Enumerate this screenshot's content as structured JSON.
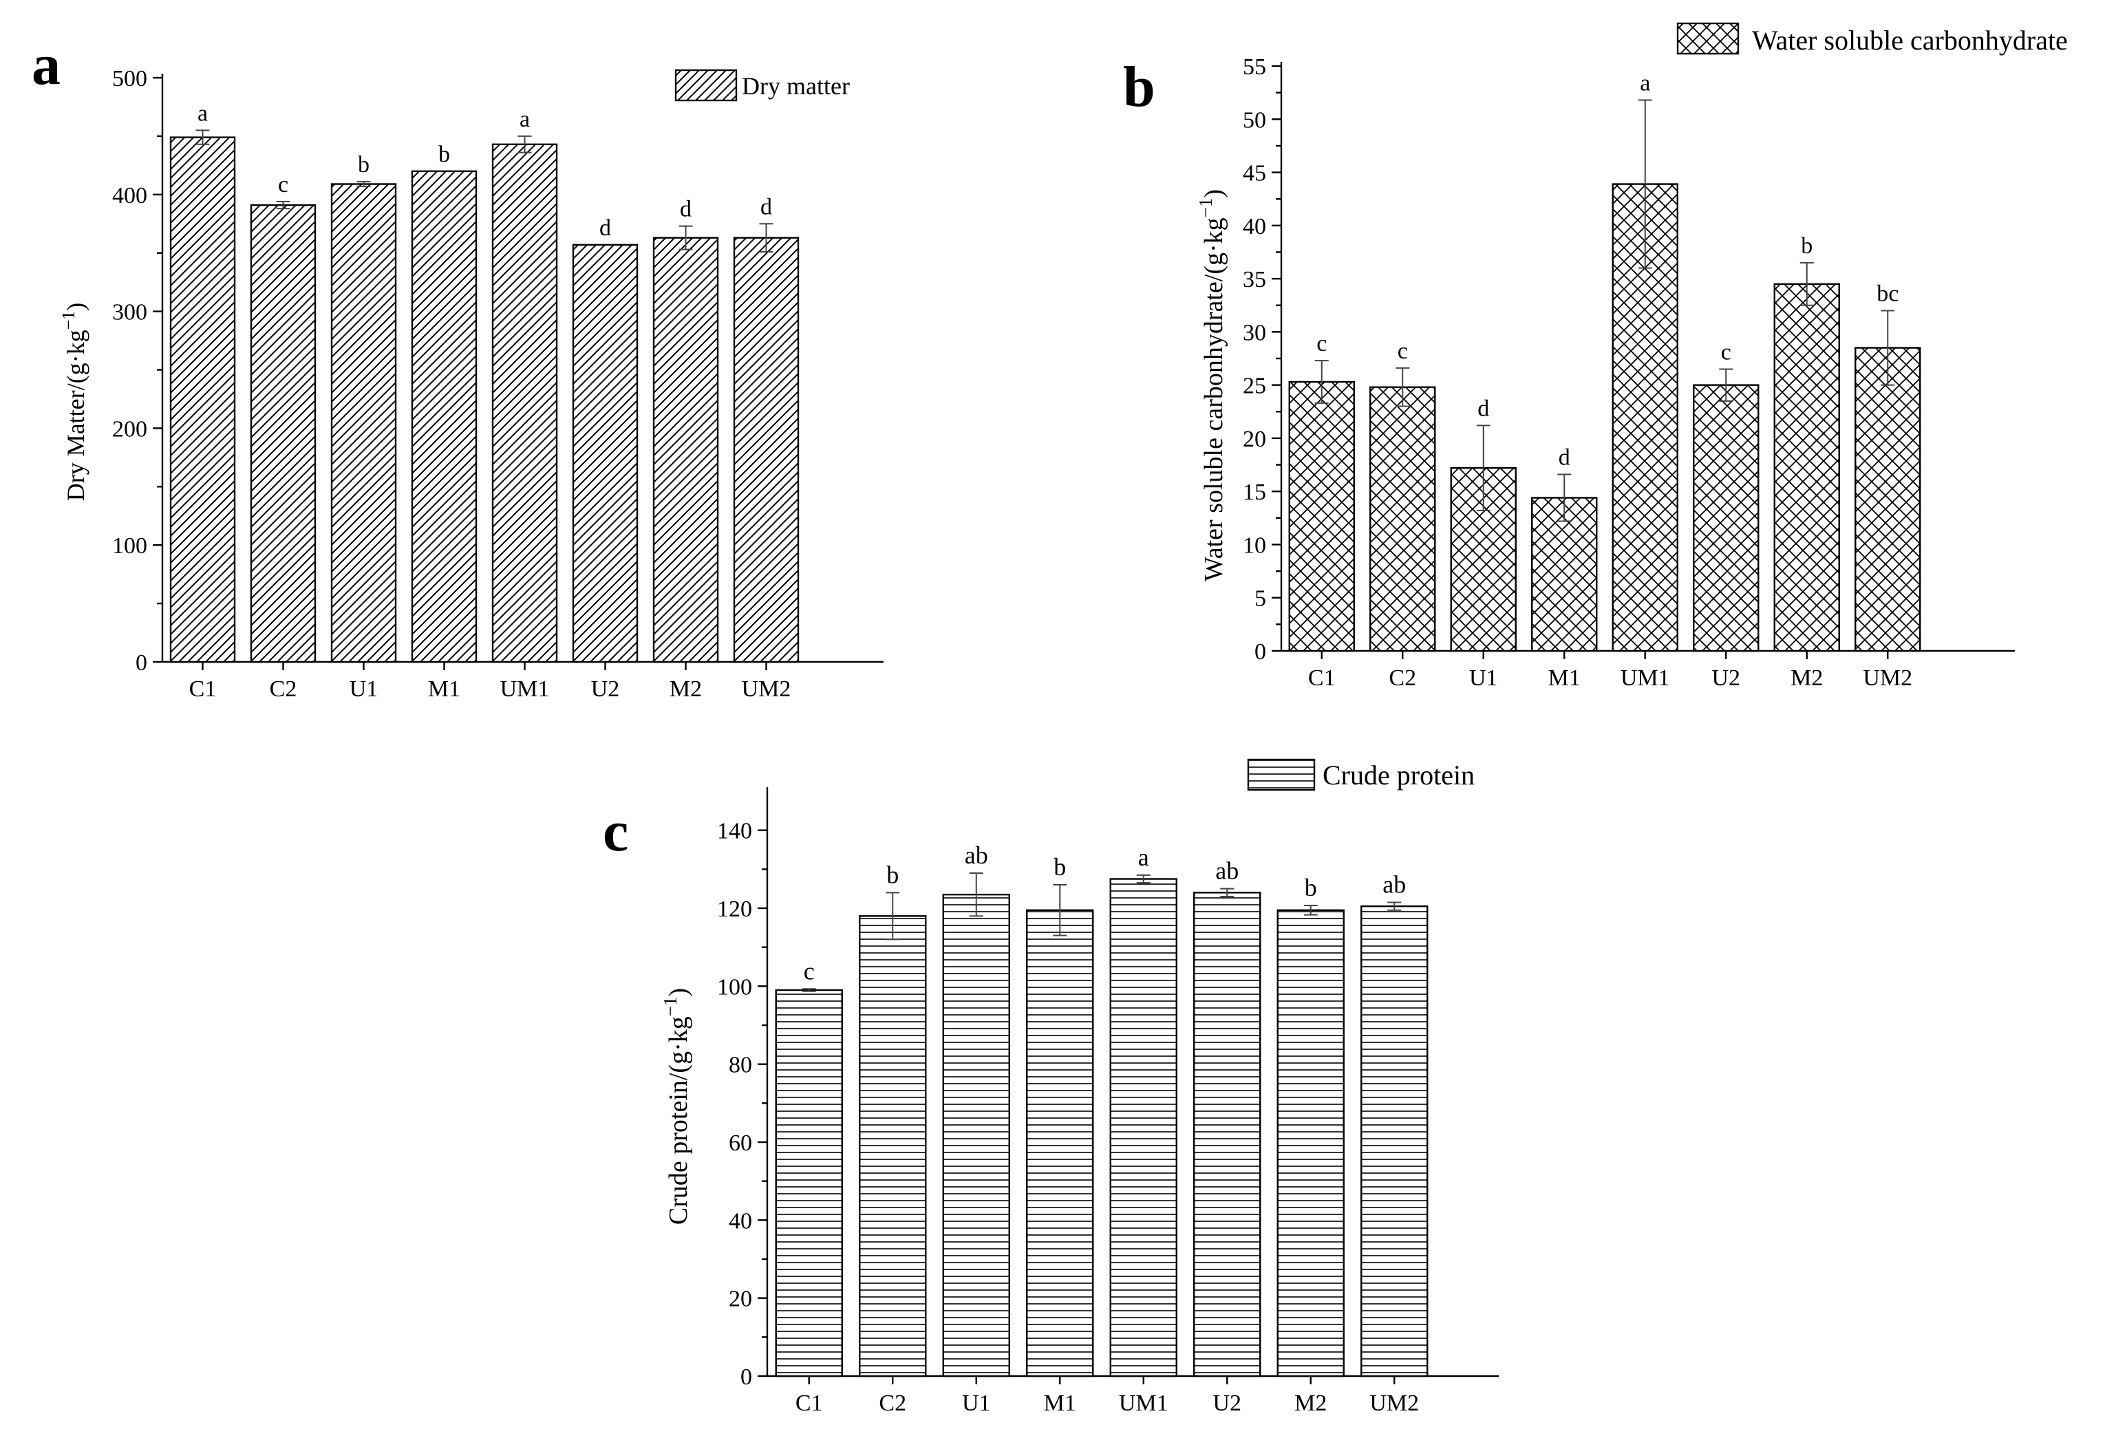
{
  "chart_data": [
    {
      "panel": "a",
      "type": "bar",
      "legend": "Dry matter",
      "ylabel": "Dry Matter/(g·kg",
      "ylabel_sup": "−1",
      "ylabel_close": ")",
      "ylim": [
        0,
        500
      ],
      "yticks": [
        0,
        100,
        200,
        300,
        400,
        500
      ],
      "categories": [
        "C1",
        "C2",
        "U1",
        "M1",
        "UM1",
        "U2",
        "M2",
        "UM2"
      ],
      "values": [
        449,
        391,
        409,
        420,
        443,
        357,
        363,
        363
      ],
      "errors": [
        6,
        3,
        2,
        0,
        7,
        0,
        10,
        12
      ],
      "significance": [
        "a",
        "c",
        "b",
        "b",
        "a",
        "d",
        "d",
        "d"
      ],
      "pattern": "diagonal"
    },
    {
      "panel": "b",
      "type": "bar",
      "legend": "Water soluble carbonhydrate",
      "ylabel": "Water soluble carbonhydrate/(g·kg",
      "ylabel_sup": "−1",
      "ylabel_close": ")",
      "ylim": [
        0,
        55
      ],
      "yticks": [
        0,
        5,
        10,
        15,
        20,
        25,
        30,
        35,
        40,
        45,
        50,
        55
      ],
      "categories": [
        "C1",
        "C2",
        "U1",
        "M1",
        "UM1",
        "U2",
        "M2",
        "UM2"
      ],
      "values": [
        25.3,
        24.8,
        17.2,
        14.4,
        43.9,
        25.0,
        34.5,
        28.5
      ],
      "errors": [
        2.0,
        1.8,
        4.0,
        2.2,
        7.9,
        1.5,
        2.0,
        3.5
      ],
      "significance": [
        "c",
        "c",
        "d",
        "d",
        "a",
        "c",
        "b",
        "bc"
      ],
      "pattern": "crosshatch"
    },
    {
      "panel": "c",
      "type": "bar",
      "legend": "Crude protein",
      "ylabel": "Crude protein/(g·kg",
      "ylabel_sup": "−1",
      "ylabel_close": ")",
      "ylim": [
        0,
        150
      ],
      "yticks": [
        0,
        20,
        40,
        60,
        80,
        100,
        120,
        140
      ],
      "categories": [
        "C1",
        "C2",
        "U1",
        "M1",
        "UM1",
        "U2",
        "M2",
        "UM2"
      ],
      "values": [
        99,
        118,
        123.5,
        119.5,
        127.5,
        124,
        119.5,
        120.5
      ],
      "errors": [
        0.3,
        6,
        5.5,
        6.5,
        1,
        1,
        1.2,
        1
      ],
      "significance": [
        "c",
        "b",
        "ab",
        "b",
        "a",
        "ab",
        "b",
        "ab"
      ],
      "pattern": "horizontal"
    }
  ]
}
